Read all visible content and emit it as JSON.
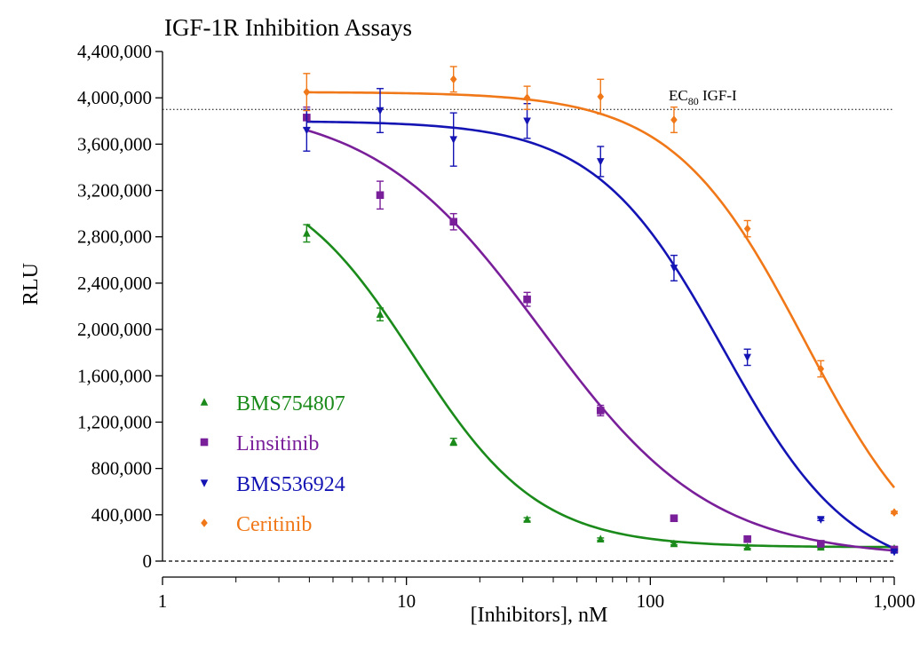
{
  "chart_data": {
    "type": "scatter",
    "title": "IGF-1R Inhibition Assays",
    "xlabel": "[Inhibitors], nM",
    "ylabel": "RLU",
    "xscale": "log",
    "xlim": [
      1,
      1000
    ],
    "ylim": [
      0,
      4400000
    ],
    "x_ticks": [
      {
        "value": 1,
        "label": "1"
      },
      {
        "value": 10,
        "label": "10"
      },
      {
        "value": 100,
        "label": "100"
      },
      {
        "value": 1000,
        "label": "1,000"
      }
    ],
    "y_ticks": [
      {
        "value": 0,
        "label": "0"
      },
      {
        "value": 400000,
        "label": "400,000"
      },
      {
        "value": 800000,
        "label": "800,000"
      },
      {
        "value": 1200000,
        "label": "1,200,000"
      },
      {
        "value": 1600000,
        "label": "1,600,000"
      },
      {
        "value": 2000000,
        "label": "2,000,000"
      },
      {
        "value": 2400000,
        "label": "2,400,000"
      },
      {
        "value": 2800000,
        "label": "2,800,000"
      },
      {
        "value": 3200000,
        "label": "3,200,000"
      },
      {
        "value": 3600000,
        "label": "3,600,000"
      },
      {
        "value": 4000000,
        "label": "4,000,000"
      },
      {
        "value": 4400000,
        "label": "4,400,000"
      }
    ],
    "grid": false,
    "legend": "bottom-left",
    "reference_lines": [
      {
        "value": 3900000,
        "label_main": "EC",
        "label_sub": "80",
        "label_rest": " IGF-I",
        "style": "dotted"
      },
      {
        "value": 0,
        "style": "dashed"
      }
    ],
    "series": [
      {
        "name": "BMS754807",
        "color": "#1a8a1a",
        "marker": "triangle-up",
        "x": [
          3.9,
          7.8,
          15.6,
          31.25,
          62.5,
          125,
          250,
          500,
          1000
        ],
        "y": [
          2830000,
          2130000,
          1030000,
          360000,
          190000,
          150000,
          120000,
          120000,
          110000
        ],
        "err": [
          75000,
          55000,
          30000,
          15000,
          10000,
          10000,
          10000,
          10000,
          10000
        ],
        "fit": {
          "top": 3400000,
          "bottom": 120000,
          "ic50": 10.8,
          "hill": 1.7
        }
      },
      {
        "name": "Linsitinib",
        "color": "#7a1f9a",
        "marker": "square",
        "x": [
          3.9,
          7.8,
          15.6,
          31.25,
          62.5,
          125,
          250,
          500,
          1000
        ],
        "y": [
          3830000,
          3160000,
          2930000,
          2260000,
          1300000,
          370000,
          190000,
          150000,
          100000
        ],
        "err": [
          90000,
          120000,
          70000,
          60000,
          45000,
          15000,
          15000,
          10000,
          10000
        ],
        "fit": {
          "top": 3950000,
          "bottom": 30000,
          "ic50": 36,
          "hill": 1.25
        }
      },
      {
        "name": "BMS536924",
        "color": "#1414b4",
        "marker": "triangle-down",
        "x": [
          3.9,
          7.8,
          15.6,
          31.25,
          62.5,
          125,
          250,
          500,
          1000
        ],
        "y": [
          3720000,
          3890000,
          3640000,
          3800000,
          3450000,
          2530000,
          1760000,
          360000,
          80000
        ],
        "err": [
          180000,
          190000,
          230000,
          150000,
          130000,
          110000,
          70000,
          10000,
          10000
        ],
        "fit": {
          "top": 3800000,
          "bottom": -150000,
          "ic50": 200,
          "hill": 1.65
        }
      },
      {
        "name": "Ceritinib",
        "color": "#f07818",
        "marker": "diamond",
        "x": [
          3.9,
          15.6,
          31.25,
          62.5,
          125,
          250,
          500,
          1000
        ],
        "y": [
          4050000,
          4160000,
          4000000,
          4010000,
          3810000,
          2870000,
          1660000,
          420000
        ],
        "err": [
          160000,
          110000,
          100000,
          150000,
          110000,
          70000,
          70000,
          10000
        ],
        "fit": {
          "top": 4050000,
          "bottom": -250000,
          "ic50": 430,
          "hill": 1.6
        }
      }
    ]
  }
}
